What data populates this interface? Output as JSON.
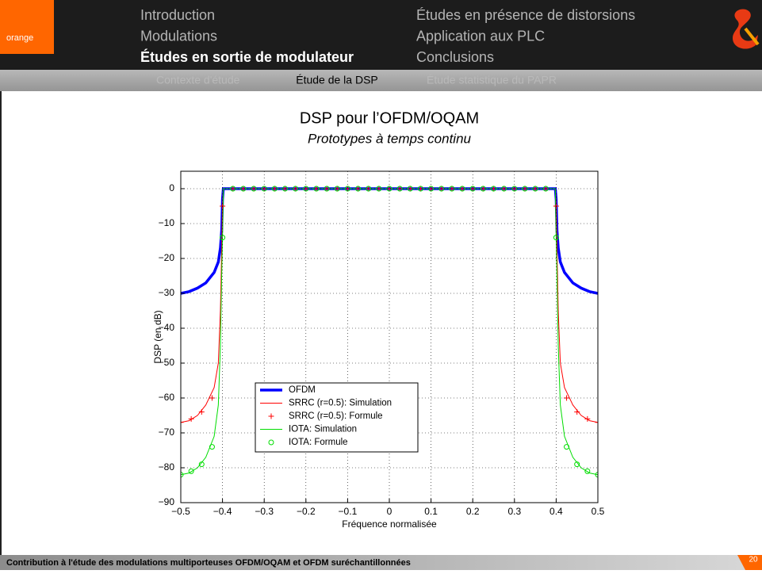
{
  "logo": "orange",
  "nav": {
    "sections": [
      {
        "label": "Introduction",
        "active": false
      },
      {
        "label": "Modulations",
        "active": false
      },
      {
        "label": "Études en sortie de modulateur",
        "active": true
      },
      {
        "label": "Études en présence de distorsions",
        "active": false
      },
      {
        "label": "Application aux PLC",
        "active": false
      },
      {
        "label": "Conclusions",
        "active": false
      }
    ],
    "subsections": [
      {
        "label": "Contexte d'étude",
        "active": false
      },
      {
        "label": "Étude de la DSP",
        "active": true
      },
      {
        "label": "Étude statistique du PAPR",
        "active": false
      }
    ]
  },
  "footer": {
    "text": "Contribution à l'étude des modulations multiporteuses OFDM/OQAM et OFDM suréchantillonnées",
    "page": 20
  },
  "chart_data": {
    "type": "line",
    "title": "DSP pour l’OFDM/OQAM",
    "subtitle": "Prototypes à temps continu",
    "x_label": "Fréquence normalisée",
    "y_label": "DSP (en dB)",
    "xlim": [
      -0.5,
      0.5
    ],
    "ylim": [
      -90,
      5
    ],
    "xticks": [
      {
        "value": -0.5,
        "label": "−0.5"
      },
      {
        "value": -0.4,
        "label": "−0.4"
      },
      {
        "value": -0.3,
        "label": "−0.3"
      },
      {
        "value": -0.2,
        "label": "−0.2"
      },
      {
        "value": -0.1,
        "label": "−0.1"
      },
      0,
      0.1,
      0.2,
      0.3,
      0.4,
      0.5
    ],
    "yticks": [
      0,
      {
        "value": -10,
        "label": "−10"
      },
      {
        "value": -20,
        "label": "−20"
      },
      {
        "value": -30,
        "label": "−30"
      },
      {
        "value": -40,
        "label": "−40"
      },
      {
        "value": -50,
        "label": "−50"
      },
      {
        "value": -60,
        "label": "−60"
      },
      {
        "value": -70,
        "label": "−70"
      },
      {
        "value": -80,
        "label": "−80"
      },
      {
        "value": -90,
        "label": "−90"
      }
    ],
    "grid": true,
    "series": [
      {
        "name": "OFDM",
        "color": "#0000ff",
        "style": "line",
        "width": 3.5,
        "x": [
          -0.5,
          -0.48,
          -0.46,
          -0.44,
          -0.42,
          -0.41,
          -0.405,
          -0.402,
          -0.4,
          -0.398,
          0.398,
          0.4,
          0.402,
          0.405,
          0.41,
          0.42,
          0.44,
          0.46,
          0.48,
          0.5
        ],
        "values": [
          -30,
          -29.5,
          -28.5,
          -27,
          -24,
          -21,
          -17,
          -12,
          -3,
          0,
          0,
          -3,
          -12,
          -17,
          -21,
          -24,
          -27,
          -28.5,
          -29.5,
          -30
        ]
      },
      {
        "name": "SRRC (r=0.5): Simulation",
        "color": "#ff0000",
        "style": "line",
        "width": 1,
        "x": [
          -0.5,
          -0.48,
          -0.46,
          -0.44,
          -0.42,
          -0.41,
          -0.405,
          -0.402,
          -0.4,
          -0.398,
          0.398,
          0.4,
          0.402,
          0.405,
          0.41,
          0.42,
          0.44,
          0.46,
          0.48,
          0.5
        ],
        "values": [
          -67,
          -66.5,
          -65,
          -62,
          -57,
          -50,
          -35,
          -18,
          -5,
          0,
          0,
          -5,
          -18,
          -35,
          -50,
          -57,
          -62,
          -65,
          -66.5,
          -67
        ]
      },
      {
        "name": "SRRC (r=0.5): Formule",
        "color": "#ff0000",
        "style": "plus",
        "x": [
          -0.5,
          -0.475,
          -0.45,
          -0.425,
          -0.4,
          -0.375,
          -0.35,
          -0.325,
          -0.3,
          -0.275,
          -0.25,
          -0.225,
          -0.2,
          -0.175,
          -0.15,
          -0.125,
          -0.1,
          -0.075,
          -0.05,
          -0.025,
          0,
          0.025,
          0.05,
          0.075,
          0.1,
          0.125,
          0.15,
          0.175,
          0.2,
          0.225,
          0.25,
          0.275,
          0.3,
          0.325,
          0.35,
          0.375,
          0.4,
          0.425,
          0.45,
          0.475,
          0.5
        ],
        "values": [
          -67,
          -66,
          -64,
          -60,
          -5,
          0,
          0,
          0,
          0,
          0,
          0,
          0,
          0,
          0,
          0,
          0,
          0,
          0,
          0,
          0,
          0,
          0,
          0,
          0,
          0,
          0,
          0,
          0,
          0,
          0,
          0,
          0,
          0,
          0,
          0,
          0,
          -5,
          -60,
          -64,
          -66,
          -67
        ]
      },
      {
        "name": "IOTA: Simulation",
        "color": "#00dd00",
        "style": "line",
        "width": 1,
        "x": [
          -0.5,
          -0.48,
          -0.46,
          -0.44,
          -0.42,
          -0.41,
          -0.405,
          -0.402,
          -0.4,
          -0.398,
          0.398,
          0.4,
          0.402,
          0.405,
          0.41,
          0.42,
          0.44,
          0.46,
          0.48,
          0.5
        ],
        "values": [
          -82,
          -81.5,
          -80,
          -77,
          -71,
          -62,
          -45,
          -25,
          -14,
          0,
          0,
          -14,
          -25,
          -45,
          -62,
          -71,
          -77,
          -80,
          -81.5,
          -82
        ]
      },
      {
        "name": "IOTA: Formule",
        "color": "#00dd00",
        "style": "circle",
        "x": [
          -0.5,
          -0.475,
          -0.45,
          -0.425,
          -0.4,
          -0.375,
          -0.35,
          -0.325,
          -0.3,
          -0.275,
          -0.25,
          -0.225,
          -0.2,
          -0.175,
          -0.15,
          -0.125,
          -0.1,
          -0.075,
          -0.05,
          -0.025,
          0,
          0.025,
          0.05,
          0.075,
          0.1,
          0.125,
          0.15,
          0.175,
          0.2,
          0.225,
          0.25,
          0.275,
          0.3,
          0.325,
          0.35,
          0.375,
          0.4,
          0.425,
          0.45,
          0.475,
          0.5
        ],
        "values": [
          -82,
          -81,
          -79,
          -74,
          -14,
          0,
          0,
          0,
          0,
          0,
          0,
          0,
          0,
          0,
          0,
          0,
          0,
          0,
          0,
          0,
          0,
          0,
          0,
          0,
          0,
          0,
          0,
          0,
          0,
          0,
          0,
          0,
          0,
          0,
          0,
          0,
          -14,
          -74,
          -79,
          -81,
          -82
        ]
      }
    ]
  }
}
